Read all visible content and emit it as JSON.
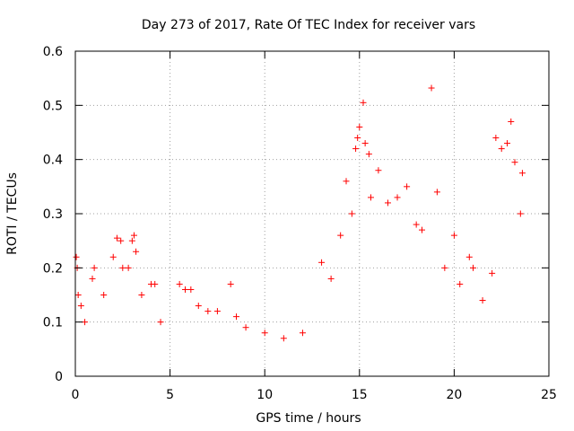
{
  "chart_data": {
    "type": "scatter",
    "title": "Day 273 of 2017, Rate Of TEC Index for receiver vars",
    "xlabel": "GPS time / hours",
    "ylabel": "ROTI / TECUs",
    "xlim": [
      0,
      25
    ],
    "ylim": [
      0,
      0.6
    ],
    "xticks": [
      0,
      5,
      10,
      15,
      20,
      25
    ],
    "xtick_labels": [
      "0",
      "5",
      "10",
      "15",
      "20",
      "25"
    ],
    "yticks": [
      0,
      0.1,
      0.2,
      0.3,
      0.4,
      0.5,
      0.6
    ],
    "ytick_labels": [
      "0",
      "0.1",
      "0.2",
      "0.3",
      "0.4",
      "0.5",
      "0.6"
    ],
    "grid": true,
    "marker": "+",
    "color": "#ff0000",
    "series": [
      {
        "points": [
          [
            0.05,
            0.22
          ],
          [
            0.1,
            0.2
          ],
          [
            0.15,
            0.15
          ],
          [
            0.3,
            0.13
          ],
          [
            0.5,
            0.1
          ],
          [
            0.9,
            0.18
          ],
          [
            1.0,
            0.2
          ],
          [
            1.5,
            0.15
          ],
          [
            2.0,
            0.22
          ],
          [
            2.2,
            0.255
          ],
          [
            2.4,
            0.25
          ],
          [
            2.5,
            0.2
          ],
          [
            2.8,
            0.2
          ],
          [
            3.0,
            0.25
          ],
          [
            3.1,
            0.26
          ],
          [
            3.2,
            0.23
          ],
          [
            3.5,
            0.15
          ],
          [
            4.0,
            0.17
          ],
          [
            4.2,
            0.17
          ],
          [
            4.5,
            0.1
          ],
          [
            5.5,
            0.17
          ],
          [
            5.8,
            0.16
          ],
          [
            6.1,
            0.16
          ],
          [
            6.5,
            0.13
          ],
          [
            7.0,
            0.12
          ],
          [
            7.5,
            0.12
          ],
          [
            8.2,
            0.17
          ],
          [
            8.5,
            0.11
          ],
          [
            9.0,
            0.09
          ],
          [
            10.0,
            0.08
          ],
          [
            11.0,
            0.07
          ],
          [
            12.0,
            0.08
          ],
          [
            13.0,
            0.21
          ],
          [
            13.5,
            0.18
          ],
          [
            14.0,
            0.26
          ],
          [
            14.3,
            0.36
          ],
          [
            14.6,
            0.3
          ],
          [
            14.8,
            0.42
          ],
          [
            14.9,
            0.44
          ],
          [
            15.0,
            0.46
          ],
          [
            15.2,
            0.505
          ],
          [
            15.3,
            0.43
          ],
          [
            15.5,
            0.41
          ],
          [
            15.6,
            0.33
          ],
          [
            16.0,
            0.38
          ],
          [
            16.5,
            0.32
          ],
          [
            17.0,
            0.33
          ],
          [
            17.5,
            0.35
          ],
          [
            18.0,
            0.28
          ],
          [
            18.3,
            0.27
          ],
          [
            18.8,
            0.532
          ],
          [
            19.1,
            0.34
          ],
          [
            19.5,
            0.2
          ],
          [
            20.0,
            0.26
          ],
          [
            20.3,
            0.17
          ],
          [
            20.8,
            0.22
          ],
          [
            21.0,
            0.2
          ],
          [
            21.5,
            0.14
          ],
          [
            22.0,
            0.19
          ],
          [
            22.2,
            0.44
          ],
          [
            22.5,
            0.42
          ],
          [
            22.8,
            0.43
          ],
          [
            23.0,
            0.47
          ],
          [
            23.2,
            0.395
          ],
          [
            23.5,
            0.3
          ],
          [
            23.6,
            0.375
          ]
        ]
      }
    ]
  }
}
